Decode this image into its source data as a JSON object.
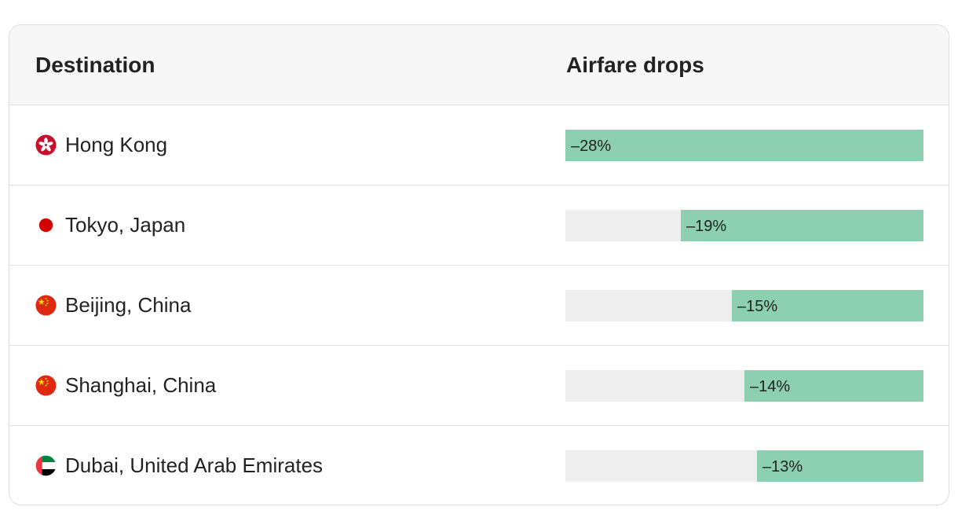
{
  "header": {
    "destination_label": "Destination",
    "airfare_label": "Airfare drops"
  },
  "colors": {
    "bar_fill": "#8cd0b1",
    "bar_track": "#eeeeee"
  },
  "chart_data": {
    "type": "bar",
    "categories": [
      "Hong Kong",
      "Tokyo, Japan",
      "Beijing, China",
      "Shanghai, China",
      "Dubai, United Arab Emirates"
    ],
    "values": [
      -28,
      -19,
      -15,
      -14,
      -13
    ],
    "value_labels": [
      "–28%",
      "–19%",
      "–15%",
      "–14%",
      "–13%"
    ],
    "flags": [
      "hong-kong-flag-icon",
      "japan-flag-icon",
      "china-flag-icon",
      "china-flag-icon",
      "uae-flag-icon"
    ],
    "unit": "%",
    "xlim": [
      0,
      -28
    ],
    "orientation": "horizontal",
    "bar_anchor": "right",
    "grid": false
  }
}
